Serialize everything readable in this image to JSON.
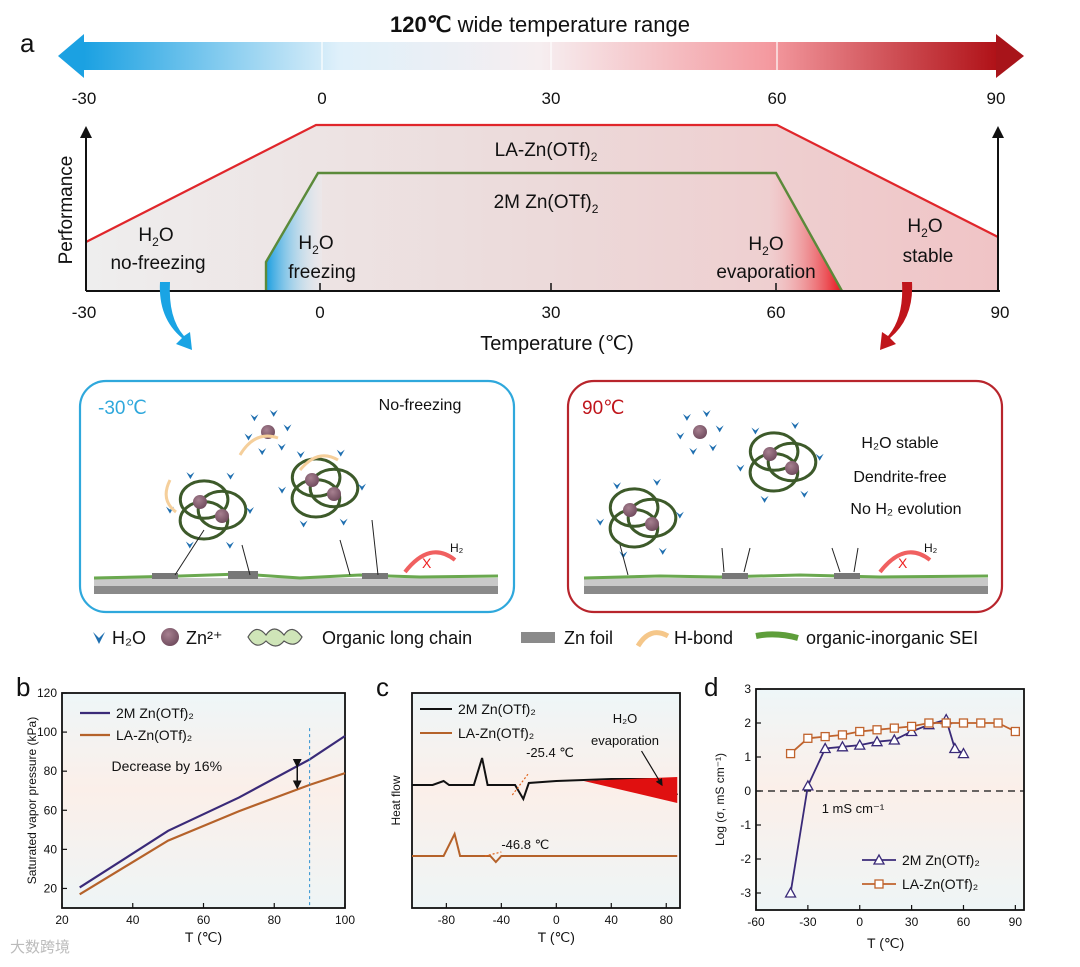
{
  "panel_a": {
    "letter": "a",
    "title_bold": "120℃",
    "title_rest": " wide temperature range",
    "bar_ticks": [
      "-30",
      "0",
      "30",
      "60",
      "90"
    ],
    "y_axis_label": "Performance",
    "x_axis_label": "Temperature (℃)",
    "axis_ticks": [
      "-30",
      "0",
      "30",
      "60",
      "90"
    ],
    "la_label": "LA-Zn(OTf)",
    "la_sub": "2",
    "twom_label": "2M Zn(OTf)",
    "twom_sub": "2",
    "h2o_nofreeze_1": "H",
    "h2o_nofreeze_2": "2",
    "h2o_nofreeze_3": "O",
    "h2o_nofreeze_line2": "no-freezing",
    "h2o_freezing_line2": "freezing",
    "h2o_evap_line2": "evaporation",
    "h2o_stable_line2": "stable",
    "colors": {
      "cold": "#1ba1e2",
      "hot": "#c0151b",
      "red_line": "#e0262b",
      "green_line": "#5b8a3a"
    }
  },
  "schematic": {
    "cold_temp": "-30℃",
    "cold_note": "No-freezing",
    "hot_temp": "90℃",
    "hot_notes": [
      "H₂O stable",
      "Dendrite-free",
      "No H₂ evolution"
    ],
    "h2_label": "H₂",
    "x_mark": "X"
  },
  "legend_row": {
    "h2o": "H₂O",
    "zn": "Zn²⁺",
    "chain": "Organic long chain",
    "foil": "Zn foil",
    "hbond": "H-bond",
    "sei": "organic-inorganic SEI"
  },
  "watermark": "大数跨境",
  "chart_data": [
    {
      "panel": "b",
      "type": "line",
      "title": "",
      "xlabel": "T (℃)",
      "ylabel": "Saturated vapor pressure (kPa)",
      "xlim": [
        20,
        100
      ],
      "ylim": [
        10,
        120
      ],
      "xticks": [
        20,
        40,
        60,
        80,
        100
      ],
      "yticks": [
        20,
        40,
        60,
        80,
        100,
        120
      ],
      "annotation": "Decrease by 16%",
      "series": [
        {
          "name": "2M Zn(OTf)₂",
          "color": "#3a2a78",
          "x": [
            25,
            50,
            70,
            90,
            100
          ],
          "y": [
            20.5,
            49.5,
            66.5,
            86,
            98
          ]
        },
        {
          "name": "LA-Zn(OTf)₂",
          "color": "#b5622a",
          "x": [
            25,
            50,
            70,
            90,
            100
          ],
          "y": [
            17,
            44.5,
            59.5,
            73,
            79
          ]
        }
      ]
    },
    {
      "panel": "c",
      "type": "line",
      "title": "",
      "xlabel": "T (℃)",
      "ylabel": "Heat flow",
      "xlim": [
        -105,
        90
      ],
      "xticks": [
        -80,
        -40,
        0,
        40,
        80
      ],
      "annotations": [
        "-25.4 ℃",
        "-46.8 ℃",
        "H₂O evaporation"
      ],
      "series": [
        {
          "name": "2M Zn(OTf)₂",
          "color": "#111111"
        },
        {
          "name": "LA-Zn(OTf)₂",
          "color": "#b5622a"
        }
      ]
    },
    {
      "panel": "d",
      "type": "line",
      "title": "",
      "xlabel": "T (℃)",
      "ylabel": "Log (σ, mS cm⁻¹)",
      "xlim": [
        -60,
        95
      ],
      "ylim": [
        -3.5,
        3
      ],
      "xticks": [
        -60,
        -30,
        0,
        30,
        60,
        90
      ],
      "yticks": [
        -3,
        -2,
        -1,
        0,
        1,
        2,
        3
      ],
      "reference_line": {
        "y": 0,
        "label": "1 mS cm⁻¹"
      },
      "series": [
        {
          "name": "2M Zn(OTf)₂",
          "color": "#3a2a78",
          "marker": "triangle",
          "x": [
            -40,
            -30,
            -20,
            -10,
            0,
            10,
            20,
            30,
            40,
            50,
            55,
            60
          ],
          "y": [
            -3.0,
            0.15,
            1.25,
            1.3,
            1.35,
            1.45,
            1.5,
            1.75,
            1.95,
            2.1,
            1.25,
            1.1
          ]
        },
        {
          "name": "LA-Zn(OTf)₂",
          "color": "#c0632d",
          "marker": "square",
          "x": [
            -40,
            -30,
            -20,
            -10,
            0,
            10,
            20,
            30,
            40,
            50,
            60,
            70,
            80,
            90
          ],
          "y": [
            1.1,
            1.55,
            1.6,
            1.65,
            1.75,
            1.8,
            1.85,
            1.9,
            2.0,
            2.0,
            2.0,
            2.0,
            2.0,
            1.75
          ]
        }
      ]
    }
  ]
}
